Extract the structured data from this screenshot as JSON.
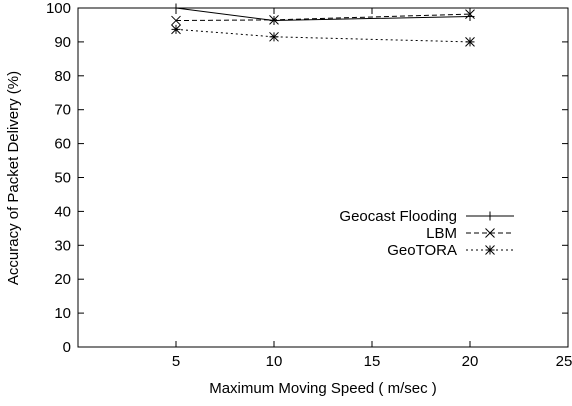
{
  "chart_data": {
    "type": "line",
    "title": "",
    "xlabel": "Maximum Moving Speed ( m/sec )",
    "ylabel": "Accuracy of Packet Delivery (%)",
    "xlim": [
      0,
      25
    ],
    "ylim": [
      0,
      100
    ],
    "xticks": [
      "5",
      "10",
      "15",
      "20",
      "25"
    ],
    "yticks": [
      "0",
      "10",
      "20",
      "30",
      "40",
      "50",
      "60",
      "70",
      "80",
      "90",
      "100"
    ],
    "grid": false,
    "legend_position": "center-right",
    "series": [
      {
        "name": "Geocast Flooding",
        "marker": "plus",
        "dash": "solid",
        "x": [
          5,
          10,
          20
        ],
        "y": [
          100,
          96.3,
          97.5
        ]
      },
      {
        "name": "LBM",
        "marker": "cross",
        "dash": "dashed",
        "x": [
          5,
          10,
          20
        ],
        "y": [
          96.3,
          96.5,
          98.2
        ]
      },
      {
        "name": "GeoTORA",
        "marker": "star",
        "dash": "dotted",
        "x": [
          5,
          10,
          20
        ],
        "y": [
          93.7,
          91.5,
          90
        ]
      }
    ]
  }
}
